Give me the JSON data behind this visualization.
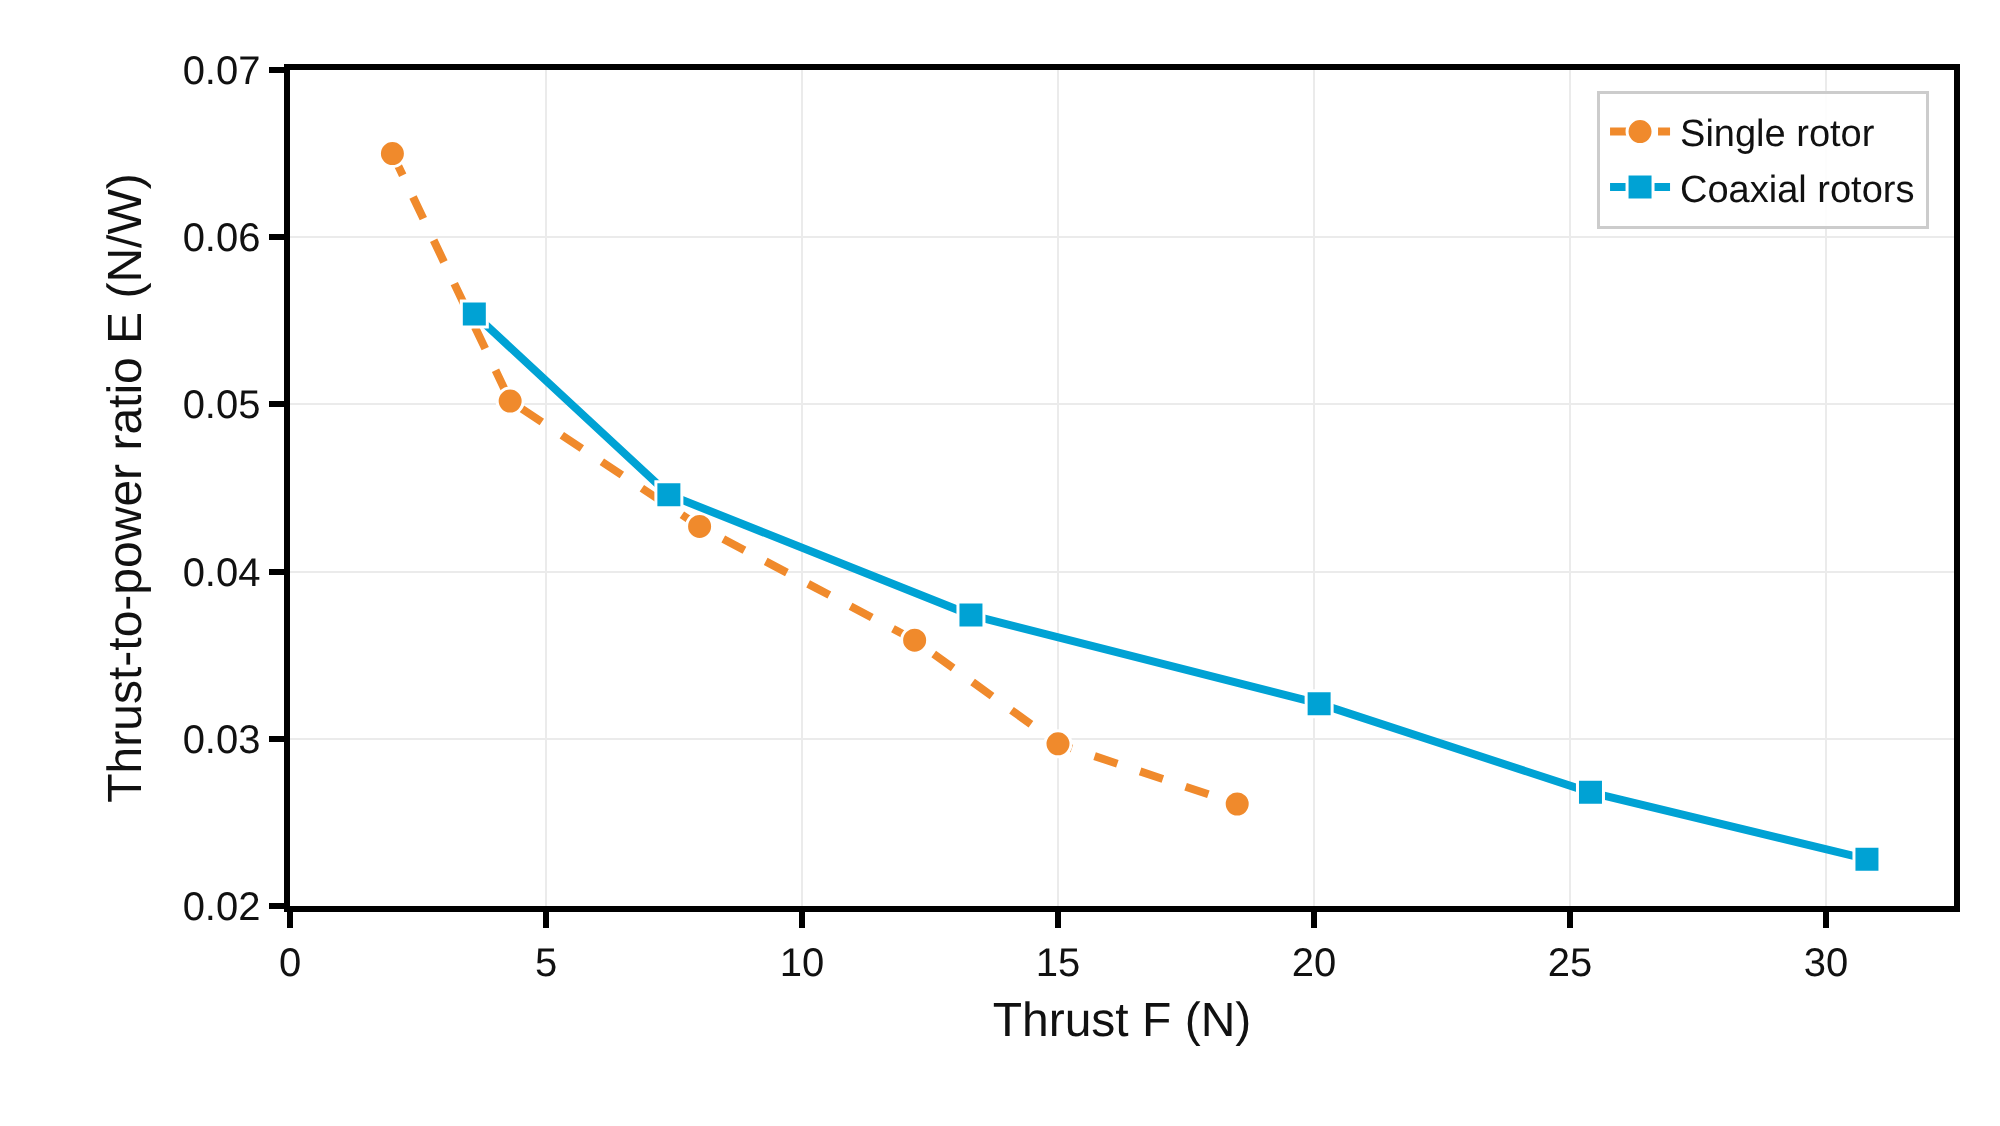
{
  "chart_data": {
    "type": "line",
    "xlabel": "Thrust F (N)",
    "ylabel": "Thrust-to-power ratio E (N/W)",
    "xlim": [
      0,
      32.5
    ],
    "xticks": [
      0,
      5,
      10,
      15,
      20,
      25,
      30
    ],
    "ylim": [
      0.02,
      0.07
    ],
    "yticks": [
      0.02,
      0.03,
      0.04,
      0.05,
      0.06,
      0.07
    ],
    "grid": true,
    "legend": "top right",
    "series": [
      {
        "name": "Single rotor",
        "color": "#f08a2c",
        "marker": "circle",
        "line_style": "dashed",
        "x": [
          2.0,
          4.3,
          8.0,
          12.2,
          15.0,
          18.5
        ],
        "values": [
          0.065,
          0.0502,
          0.0427,
          0.0359,
          0.0297,
          0.0261
        ]
      },
      {
        "name": "Coaxial rotors",
        "color": "#00a2d4",
        "marker": "square",
        "line_style": "solid",
        "x": [
          3.6,
          7.4,
          13.3,
          20.1,
          25.4,
          30.8
        ],
        "values": [
          0.0554,
          0.0446,
          0.0374,
          0.0321,
          0.0268,
          0.0228
        ]
      }
    ]
  }
}
